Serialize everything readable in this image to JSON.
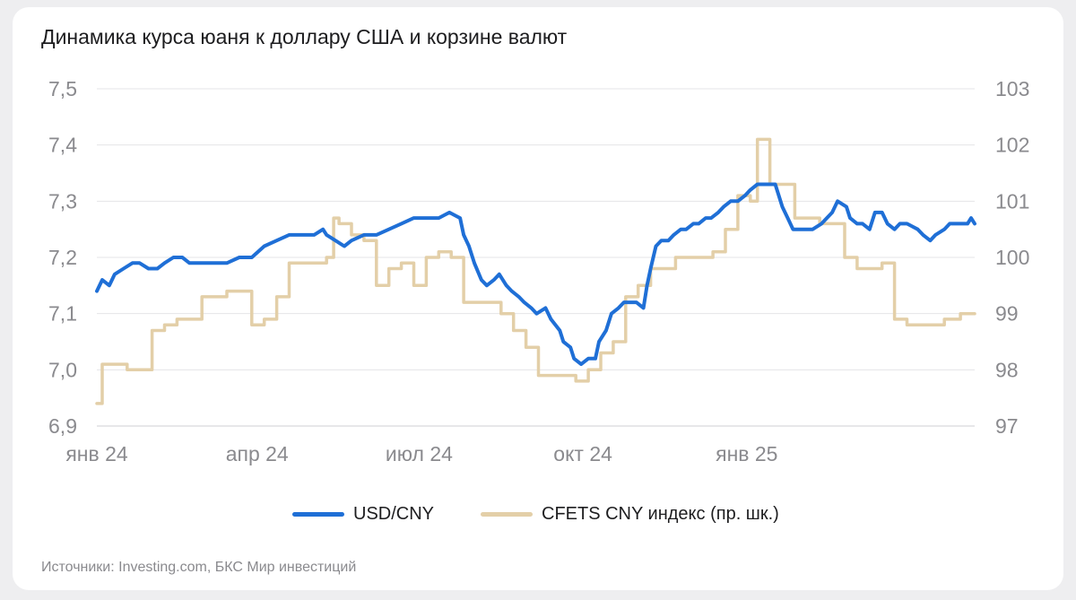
{
  "chart_data": {
    "type": "line",
    "title": "Динамика курса юаня к доллару США и корзине валют",
    "x_tick_labels": [
      "янв 24",
      "апр 24",
      "июл 24",
      "окт 24",
      "янв 25"
    ],
    "x_tick_dates": [
      "2024-01-02",
      "2024-04-01",
      "2024-07-01",
      "2024-10-01",
      "2025-01-01"
    ],
    "x_range": [
      "2024-01-02",
      "2025-05-09"
    ],
    "y_left": {
      "min": 6.9,
      "max": 7.5,
      "ticks": [
        6.9,
        7.0,
        7.1,
        7.2,
        7.3,
        7.4,
        7.5
      ],
      "tick_labels": [
        "6,9",
        "7,0",
        "7,1",
        "7,2",
        "7,3",
        "7,4",
        "7,5"
      ]
    },
    "y_right": {
      "min": 97,
      "max": 103,
      "ticks": [
        97,
        98,
        99,
        100,
        101,
        102,
        103
      ],
      "tick_labels": [
        "97",
        "98",
        "99",
        "100",
        "101",
        "102",
        "103"
      ]
    },
    "grid": true,
    "legend_position": "bottom-center",
    "series": [
      {
        "name": "USD/CNY",
        "axis": "left",
        "color": "#1f6fd6",
        "points": [
          [
            "2024-01-02",
            7.14
          ],
          [
            "2024-01-05",
            7.16
          ],
          [
            "2024-01-09",
            7.15
          ],
          [
            "2024-01-12",
            7.17
          ],
          [
            "2024-01-17",
            7.18
          ],
          [
            "2024-01-22",
            7.19
          ],
          [
            "2024-01-26",
            7.19
          ],
          [
            "2024-01-31",
            7.18
          ],
          [
            "2024-02-05",
            7.18
          ],
          [
            "2024-02-09",
            7.19
          ],
          [
            "2024-02-14",
            7.2
          ],
          [
            "2024-02-19",
            7.2
          ],
          [
            "2024-02-23",
            7.19
          ],
          [
            "2024-03-01",
            7.19
          ],
          [
            "2024-03-08",
            7.19
          ],
          [
            "2024-03-15",
            7.19
          ],
          [
            "2024-03-22",
            7.2
          ],
          [
            "2024-03-29",
            7.2
          ],
          [
            "2024-04-05",
            7.22
          ],
          [
            "2024-04-12",
            7.23
          ],
          [
            "2024-04-19",
            7.24
          ],
          [
            "2024-04-26",
            7.24
          ],
          [
            "2024-05-03",
            7.24
          ],
          [
            "2024-05-08",
            7.25
          ],
          [
            "2024-05-10",
            7.24
          ],
          [
            "2024-05-15",
            7.23
          ],
          [
            "2024-05-20",
            7.22
          ],
          [
            "2024-05-24",
            7.23
          ],
          [
            "2024-05-31",
            7.24
          ],
          [
            "2024-06-07",
            7.24
          ],
          [
            "2024-06-14",
            7.25
          ],
          [
            "2024-06-21",
            7.26
          ],
          [
            "2024-06-28",
            7.27
          ],
          [
            "2024-07-05",
            7.27
          ],
          [
            "2024-07-12",
            7.27
          ],
          [
            "2024-07-18",
            7.28
          ],
          [
            "2024-07-24",
            7.27
          ],
          [
            "2024-07-26",
            7.24
          ],
          [
            "2024-07-29",
            7.22
          ],
          [
            "2024-08-01",
            7.19
          ],
          [
            "2024-08-05",
            7.16
          ],
          [
            "2024-08-08",
            7.15
          ],
          [
            "2024-08-12",
            7.16
          ],
          [
            "2024-08-15",
            7.17
          ],
          [
            "2024-08-19",
            7.15
          ],
          [
            "2024-08-22",
            7.14
          ],
          [
            "2024-08-26",
            7.13
          ],
          [
            "2024-08-29",
            7.12
          ],
          [
            "2024-09-02",
            7.11
          ],
          [
            "2024-09-05",
            7.1
          ],
          [
            "2024-09-10",
            7.11
          ],
          [
            "2024-09-13",
            7.09
          ],
          [
            "2024-09-18",
            7.07
          ],
          [
            "2024-09-20",
            7.05
          ],
          [
            "2024-09-24",
            7.04
          ],
          [
            "2024-09-26",
            7.02
          ],
          [
            "2024-09-30",
            7.01
          ],
          [
            "2024-10-04",
            7.02
          ],
          [
            "2024-10-08",
            7.02
          ],
          [
            "2024-10-10",
            7.05
          ],
          [
            "2024-10-14",
            7.07
          ],
          [
            "2024-10-17",
            7.1
          ],
          [
            "2024-10-21",
            7.11
          ],
          [
            "2024-10-24",
            7.12
          ],
          [
            "2024-10-28",
            7.12
          ],
          [
            "2024-10-31",
            7.12
          ],
          [
            "2024-11-04",
            7.11
          ],
          [
            "2024-11-06",
            7.15
          ],
          [
            "2024-11-08",
            7.18
          ],
          [
            "2024-11-11",
            7.22
          ],
          [
            "2024-11-14",
            7.23
          ],
          [
            "2024-11-18",
            7.23
          ],
          [
            "2024-11-21",
            7.24
          ],
          [
            "2024-11-25",
            7.25
          ],
          [
            "2024-11-28",
            7.25
          ],
          [
            "2024-12-02",
            7.26
          ],
          [
            "2024-12-05",
            7.26
          ],
          [
            "2024-12-09",
            7.27
          ],
          [
            "2024-12-12",
            7.27
          ],
          [
            "2024-12-16",
            7.28
          ],
          [
            "2024-12-19",
            7.29
          ],
          [
            "2024-12-23",
            7.3
          ],
          [
            "2024-12-27",
            7.3
          ],
          [
            "2024-12-31",
            7.31
          ],
          [
            "2025-01-03",
            7.32
          ],
          [
            "2025-01-07",
            7.33
          ],
          [
            "2025-01-10",
            7.33
          ],
          [
            "2025-01-14",
            7.33
          ],
          [
            "2025-01-17",
            7.33
          ],
          [
            "2025-01-21",
            7.29
          ],
          [
            "2025-01-24",
            7.27
          ],
          [
            "2025-01-27",
            7.25
          ],
          [
            "2025-02-03",
            7.25
          ],
          [
            "2025-02-07",
            7.25
          ],
          [
            "2025-02-12",
            7.26
          ],
          [
            "2025-02-18",
            7.28
          ],
          [
            "2025-02-21",
            7.3
          ],
          [
            "2025-02-26",
            7.29
          ],
          [
            "2025-02-28",
            7.27
          ],
          [
            "2025-03-04",
            7.26
          ],
          [
            "2025-03-07",
            7.26
          ],
          [
            "2025-03-11",
            7.25
          ],
          [
            "2025-03-14",
            7.28
          ],
          [
            "2025-03-18",
            7.28
          ],
          [
            "2025-03-21",
            7.26
          ],
          [
            "2025-03-25",
            7.25
          ],
          [
            "2025-03-28",
            7.26
          ],
          [
            "2025-04-01",
            7.26
          ],
          [
            "2025-04-07",
            7.25
          ],
          [
            "2025-04-10",
            7.24
          ],
          [
            "2025-04-14",
            7.23
          ],
          [
            "2025-04-17",
            7.24
          ],
          [
            "2025-04-22",
            7.25
          ],
          [
            "2025-04-25",
            7.26
          ],
          [
            "2025-04-30",
            7.26
          ],
          [
            "2025-05-05",
            7.26
          ],
          [
            "2025-05-07",
            7.27
          ],
          [
            "2025-05-09",
            7.26
          ]
        ]
      },
      {
        "name": "CFETS CNY индекс (пр. шк.)",
        "axis": "right",
        "color": "#e3cfa8",
        "points": [
          [
            "2024-01-02",
            97.4
          ],
          [
            "2024-01-05",
            98.1
          ],
          [
            "2024-01-12",
            98.1
          ],
          [
            "2024-01-19",
            98.0
          ],
          [
            "2024-01-26",
            98.0
          ],
          [
            "2024-02-02",
            98.7
          ],
          [
            "2024-02-09",
            98.8
          ],
          [
            "2024-02-16",
            98.9
          ],
          [
            "2024-02-23",
            98.9
          ],
          [
            "2024-03-01",
            99.3
          ],
          [
            "2024-03-08",
            99.3
          ],
          [
            "2024-03-15",
            99.4
          ],
          [
            "2024-03-22",
            99.4
          ],
          [
            "2024-03-29",
            98.8
          ],
          [
            "2024-04-05",
            98.9
          ],
          [
            "2024-04-12",
            99.3
          ],
          [
            "2024-04-19",
            99.9
          ],
          [
            "2024-04-26",
            99.9
          ],
          [
            "2024-05-03",
            99.9
          ],
          [
            "2024-05-10",
            100.0
          ],
          [
            "2024-05-14",
            100.7
          ],
          [
            "2024-05-17",
            100.6
          ],
          [
            "2024-05-24",
            100.4
          ],
          [
            "2024-05-31",
            100.3
          ],
          [
            "2024-06-07",
            99.5
          ],
          [
            "2024-06-14",
            99.8
          ],
          [
            "2024-06-21",
            99.9
          ],
          [
            "2024-06-28",
            99.5
          ],
          [
            "2024-07-05",
            100.0
          ],
          [
            "2024-07-12",
            100.1
          ],
          [
            "2024-07-19",
            100.0
          ],
          [
            "2024-07-26",
            99.2
          ],
          [
            "2024-08-02",
            99.2
          ],
          [
            "2024-08-09",
            99.2
          ],
          [
            "2024-08-16",
            99.0
          ],
          [
            "2024-08-23",
            98.7
          ],
          [
            "2024-08-30",
            98.4
          ],
          [
            "2024-09-06",
            97.9
          ],
          [
            "2024-09-13",
            97.9
          ],
          [
            "2024-09-20",
            97.9
          ],
          [
            "2024-09-27",
            97.8
          ],
          [
            "2024-10-04",
            98.0
          ],
          [
            "2024-10-11",
            98.3
          ],
          [
            "2024-10-18",
            98.5
          ],
          [
            "2024-10-25",
            99.3
          ],
          [
            "2024-11-01",
            99.5
          ],
          [
            "2024-11-08",
            99.8
          ],
          [
            "2024-11-15",
            99.8
          ],
          [
            "2024-11-22",
            100.0
          ],
          [
            "2024-11-29",
            100.0
          ],
          [
            "2024-12-06",
            100.0
          ],
          [
            "2024-12-13",
            100.1
          ],
          [
            "2024-12-20",
            100.5
          ],
          [
            "2024-12-27",
            101.1
          ],
          [
            "2025-01-03",
            101.0
          ],
          [
            "2025-01-07",
            102.1
          ],
          [
            "2025-01-14",
            101.3
          ],
          [
            "2025-01-21",
            101.3
          ],
          [
            "2025-01-28",
            100.7
          ],
          [
            "2025-02-04",
            100.7
          ],
          [
            "2025-02-11",
            100.6
          ],
          [
            "2025-02-18",
            100.6
          ],
          [
            "2025-02-25",
            100.0
          ],
          [
            "2025-03-04",
            99.8
          ],
          [
            "2025-03-11",
            99.8
          ],
          [
            "2025-03-18",
            99.9
          ],
          [
            "2025-03-25",
            98.9
          ],
          [
            "2025-04-01",
            98.8
          ],
          [
            "2025-04-08",
            98.8
          ],
          [
            "2025-04-15",
            98.8
          ],
          [
            "2025-04-22",
            98.9
          ],
          [
            "2025-05-01",
            99.0
          ],
          [
            "2025-05-09",
            99.0
          ]
        ]
      }
    ]
  },
  "legend": {
    "items": [
      {
        "label": "USD/CNY",
        "color": "#1f6fd6"
      },
      {
        "label": "CFETS CNY индекс (пр. шк.)",
        "color": "#e3cfa8"
      }
    ]
  },
  "source": "Источники: Investing.com, БКС Мир инвестиций"
}
